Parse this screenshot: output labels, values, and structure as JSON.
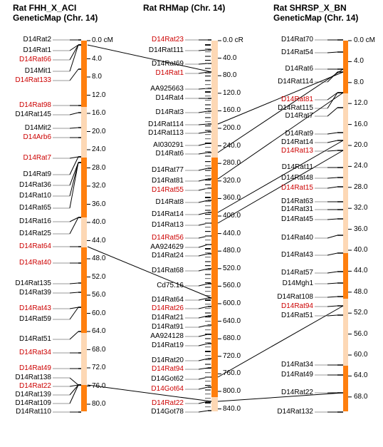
{
  "colors": {
    "dark": "#ff7f0e",
    "light": "#fdd8b5",
    "red": "#cc0000",
    "text": "#000000"
  },
  "maps": [
    {
      "title1": "Rat FHH_X_ACI",
      "title2": "GeneticMap (Chr. 14)",
      "scale": [
        "0.0 cM",
        "4.0",
        "8.0",
        "12.0",
        "16.0",
        "20.0",
        "24.0",
        "28.0",
        "32.0",
        "36.0",
        "40.0",
        "44.0",
        "48.0",
        "52.0",
        "56.0",
        "60.0",
        "64.0",
        "68.0",
        "72.0",
        "76.0",
        "80.0"
      ],
      "markers": [
        {
          "name": "D14Rat2",
          "red": false
        },
        {
          "name": "D14Rat1",
          "red": false
        },
        {
          "name": "D14Rat66",
          "red": true
        },
        {
          "name": "D14Mit1",
          "red": false
        },
        {
          "name": "D14Rat133",
          "red": true
        },
        {
          "name": "D14Rat98",
          "red": true
        },
        {
          "name": "D14Rat145",
          "red": false
        },
        {
          "name": "D14Mit2",
          "red": false
        },
        {
          "name": "D14Arb6",
          "red": true
        },
        {
          "name": "D14Rat7",
          "red": true
        },
        {
          "name": "D14Rat9",
          "red": false
        },
        {
          "name": "D14Rat36",
          "red": false
        },
        {
          "name": "D14Rat10",
          "red": false
        },
        {
          "name": "D14Rat65",
          "red": false
        },
        {
          "name": "D14Rat16",
          "red": false
        },
        {
          "name": "D14Rat25",
          "red": false
        },
        {
          "name": "D14Rat64",
          "red": true
        },
        {
          "name": "D14Rat40",
          "red": true
        },
        {
          "name": "D14Rat135",
          "red": false
        },
        {
          "name": "D14Rat39",
          "red": false
        },
        {
          "name": "D14Rat43",
          "red": true
        },
        {
          "name": "D14Rat59",
          "red": false
        },
        {
          "name": "D14Rat51",
          "red": false
        },
        {
          "name": "D14Rat34",
          "red": true
        },
        {
          "name": "D14Rat49",
          "red": true
        },
        {
          "name": "D14Rat138",
          "red": false
        },
        {
          "name": "D14Rat22",
          "red": true
        },
        {
          "name": "D14Rat139",
          "red": false
        },
        {
          "name": "D14Rat109",
          "red": false
        },
        {
          "name": "D14Rat110",
          "red": false
        }
      ]
    },
    {
      "title1": "Rat RHMap (Chr. 14)",
      "title2": "",
      "scale": [
        "0.0 cR",
        "40.0",
        "80.0",
        "120.0",
        "160.0",
        "200.0",
        "240.0",
        "280.0",
        "320.0",
        "360.0",
        "400.0",
        "440.0",
        "480.0",
        "520.0",
        "560.0",
        "600.0",
        "640.0",
        "680.0",
        "720.0",
        "760.0",
        "800.0",
        "840.0"
      ],
      "markers": [
        {
          "name": "D14Rat23",
          "red": true
        },
        {
          "name": "D14Rat111",
          "red": false
        },
        {
          "name": "D14Rat69",
          "red": false
        },
        {
          "name": "D14Rat1",
          "red": true
        },
        {
          "name": "AA925663",
          "red": false
        },
        {
          "name": "D14Rat4",
          "red": false
        },
        {
          "name": "D14Rat3",
          "red": false
        },
        {
          "name": "D14Rat114",
          "red": false
        },
        {
          "name": "D14Rat113",
          "red": false
        },
        {
          "name": "AI030291",
          "red": false
        },
        {
          "name": "D14Rat6",
          "red": false
        },
        {
          "name": "D14Rat77",
          "red": false
        },
        {
          "name": "D14Rat81",
          "red": false
        },
        {
          "name": "D14Rat55",
          "red": true
        },
        {
          "name": "D14Rat8",
          "red": false
        },
        {
          "name": "D14Rat14",
          "red": false
        },
        {
          "name": "D14Rat13",
          "red": false
        },
        {
          "name": "D14Rat56",
          "red": true
        },
        {
          "name": "AA924629",
          "red": false
        },
        {
          "name": "D14Rat24",
          "red": false
        },
        {
          "name": "D14Rat68",
          "red": false
        },
        {
          "name": "Cd75.16",
          "red": false
        },
        {
          "name": "D14Rat64",
          "red": false
        },
        {
          "name": "D14Rat26",
          "red": true
        },
        {
          "name": "D14Rat21",
          "red": false
        },
        {
          "name": "D14Rat91",
          "red": false
        },
        {
          "name": "AA924128",
          "red": false
        },
        {
          "name": "D14Rat19",
          "red": false
        },
        {
          "name": "D14Rat20",
          "red": false
        },
        {
          "name": "D14Rat94",
          "red": true
        },
        {
          "name": "D14Got62",
          "red": false
        },
        {
          "name": "D14Got64",
          "red": true
        },
        {
          "name": "D14Rat22",
          "red": true
        },
        {
          "name": "D14Got78",
          "red": false
        }
      ]
    },
    {
      "title1": "Rat SHRSP_X_BN",
      "title2": "GeneticMap (Chr. 14)",
      "scale": [
        "0.0 cM",
        "4.0",
        "8.0",
        "12.0",
        "16.0",
        "20.0",
        "24.0",
        "28.0",
        "32.0",
        "36.0",
        "40.0",
        "44.0",
        "48.0",
        "52.0",
        "56.0",
        "60.0",
        "64.0",
        "68.0"
      ],
      "markers": [
        {
          "name": "D14Rat70",
          "red": false
        },
        {
          "name": "D14Rat54",
          "red": false
        },
        {
          "name": "D14Rat6",
          "red": false
        },
        {
          "name": "D14Rat114",
          "red": false
        },
        {
          "name": "D14Rat81",
          "red": true
        },
        {
          "name": "D14Rat115",
          "red": false
        },
        {
          "name": "D14Rat7",
          "red": false
        },
        {
          "name": "D14Rat9",
          "red": false
        },
        {
          "name": "D14Rat14",
          "red": false
        },
        {
          "name": "D14Rat13",
          "red": true
        },
        {
          "name": "D14Rat11",
          "red": false
        },
        {
          "name": "D14Rat48",
          "red": false
        },
        {
          "name": "D14Rat15",
          "red": true
        },
        {
          "name": "D14Rat63",
          "red": false
        },
        {
          "name": "D14Rat31",
          "red": false
        },
        {
          "name": "D14Rat45",
          "red": false
        },
        {
          "name": "D14Rat40",
          "red": false
        },
        {
          "name": "D14Rat43",
          "red": false
        },
        {
          "name": "D14Rat57",
          "red": false
        },
        {
          "name": "D14Mgh1",
          "red": false
        },
        {
          "name": "D14Rat108",
          "red": false
        },
        {
          "name": "D14Rat94",
          "red": true
        },
        {
          "name": "D14Rat51",
          "red": false
        },
        {
          "name": "D14Rat34",
          "red": false
        },
        {
          "name": "D14Rat49",
          "red": false
        },
        {
          "name": "D14Rat22",
          "red": false
        },
        {
          "name": "D14Rat132",
          "red": false
        }
      ]
    }
  ]
}
